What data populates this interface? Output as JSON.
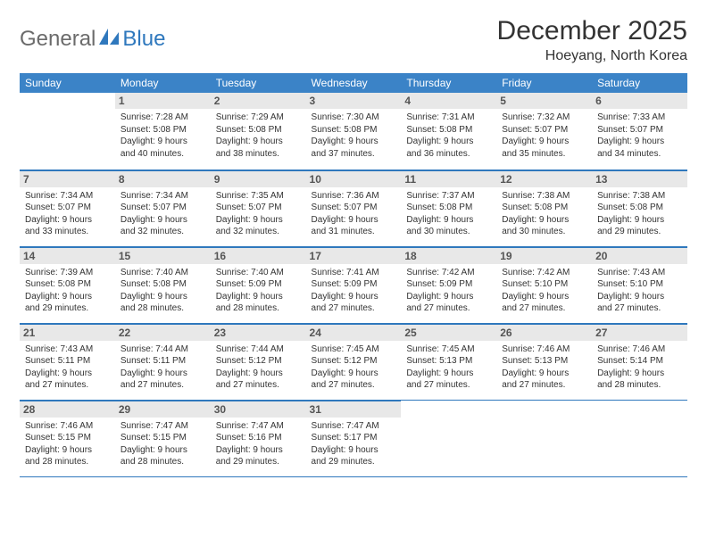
{
  "logo": {
    "part1": "General",
    "part2": "Blue"
  },
  "title": "December 2025",
  "location": "Hoeyang, North Korea",
  "colors": {
    "header_bg": "#3b83c7",
    "border": "#2f78bd",
    "daynum_bg": "#e8e8e8",
    "text": "#333333",
    "logo_gray": "#6b6b6b",
    "logo_blue": "#2f78bd"
  },
  "day_headers": [
    "Sunday",
    "Monday",
    "Tuesday",
    "Wednesday",
    "Thursday",
    "Friday",
    "Saturday"
  ],
  "weeks": [
    [
      null,
      {
        "n": "1",
        "sr": "Sunrise: 7:28 AM",
        "ss": "Sunset: 5:08 PM",
        "d1": "Daylight: 9 hours",
        "d2": "and 40 minutes."
      },
      {
        "n": "2",
        "sr": "Sunrise: 7:29 AM",
        "ss": "Sunset: 5:08 PM",
        "d1": "Daylight: 9 hours",
        "d2": "and 38 minutes."
      },
      {
        "n": "3",
        "sr": "Sunrise: 7:30 AM",
        "ss": "Sunset: 5:08 PM",
        "d1": "Daylight: 9 hours",
        "d2": "and 37 minutes."
      },
      {
        "n": "4",
        "sr": "Sunrise: 7:31 AM",
        "ss": "Sunset: 5:08 PM",
        "d1": "Daylight: 9 hours",
        "d2": "and 36 minutes."
      },
      {
        "n": "5",
        "sr": "Sunrise: 7:32 AM",
        "ss": "Sunset: 5:07 PM",
        "d1": "Daylight: 9 hours",
        "d2": "and 35 minutes."
      },
      {
        "n": "6",
        "sr": "Sunrise: 7:33 AM",
        "ss": "Sunset: 5:07 PM",
        "d1": "Daylight: 9 hours",
        "d2": "and 34 minutes."
      }
    ],
    [
      {
        "n": "7",
        "sr": "Sunrise: 7:34 AM",
        "ss": "Sunset: 5:07 PM",
        "d1": "Daylight: 9 hours",
        "d2": "and 33 minutes."
      },
      {
        "n": "8",
        "sr": "Sunrise: 7:34 AM",
        "ss": "Sunset: 5:07 PM",
        "d1": "Daylight: 9 hours",
        "d2": "and 32 minutes."
      },
      {
        "n": "9",
        "sr": "Sunrise: 7:35 AM",
        "ss": "Sunset: 5:07 PM",
        "d1": "Daylight: 9 hours",
        "d2": "and 32 minutes."
      },
      {
        "n": "10",
        "sr": "Sunrise: 7:36 AM",
        "ss": "Sunset: 5:07 PM",
        "d1": "Daylight: 9 hours",
        "d2": "and 31 minutes."
      },
      {
        "n": "11",
        "sr": "Sunrise: 7:37 AM",
        "ss": "Sunset: 5:08 PM",
        "d1": "Daylight: 9 hours",
        "d2": "and 30 minutes."
      },
      {
        "n": "12",
        "sr": "Sunrise: 7:38 AM",
        "ss": "Sunset: 5:08 PM",
        "d1": "Daylight: 9 hours",
        "d2": "and 30 minutes."
      },
      {
        "n": "13",
        "sr": "Sunrise: 7:38 AM",
        "ss": "Sunset: 5:08 PM",
        "d1": "Daylight: 9 hours",
        "d2": "and 29 minutes."
      }
    ],
    [
      {
        "n": "14",
        "sr": "Sunrise: 7:39 AM",
        "ss": "Sunset: 5:08 PM",
        "d1": "Daylight: 9 hours",
        "d2": "and 29 minutes."
      },
      {
        "n": "15",
        "sr": "Sunrise: 7:40 AM",
        "ss": "Sunset: 5:08 PM",
        "d1": "Daylight: 9 hours",
        "d2": "and 28 minutes."
      },
      {
        "n": "16",
        "sr": "Sunrise: 7:40 AM",
        "ss": "Sunset: 5:09 PM",
        "d1": "Daylight: 9 hours",
        "d2": "and 28 minutes."
      },
      {
        "n": "17",
        "sr": "Sunrise: 7:41 AM",
        "ss": "Sunset: 5:09 PM",
        "d1": "Daylight: 9 hours",
        "d2": "and 27 minutes."
      },
      {
        "n": "18",
        "sr": "Sunrise: 7:42 AM",
        "ss": "Sunset: 5:09 PM",
        "d1": "Daylight: 9 hours",
        "d2": "and 27 minutes."
      },
      {
        "n": "19",
        "sr": "Sunrise: 7:42 AM",
        "ss": "Sunset: 5:10 PM",
        "d1": "Daylight: 9 hours",
        "d2": "and 27 minutes."
      },
      {
        "n": "20",
        "sr": "Sunrise: 7:43 AM",
        "ss": "Sunset: 5:10 PM",
        "d1": "Daylight: 9 hours",
        "d2": "and 27 minutes."
      }
    ],
    [
      {
        "n": "21",
        "sr": "Sunrise: 7:43 AM",
        "ss": "Sunset: 5:11 PM",
        "d1": "Daylight: 9 hours",
        "d2": "and 27 minutes."
      },
      {
        "n": "22",
        "sr": "Sunrise: 7:44 AM",
        "ss": "Sunset: 5:11 PM",
        "d1": "Daylight: 9 hours",
        "d2": "and 27 minutes."
      },
      {
        "n": "23",
        "sr": "Sunrise: 7:44 AM",
        "ss": "Sunset: 5:12 PM",
        "d1": "Daylight: 9 hours",
        "d2": "and 27 minutes."
      },
      {
        "n": "24",
        "sr": "Sunrise: 7:45 AM",
        "ss": "Sunset: 5:12 PM",
        "d1": "Daylight: 9 hours",
        "d2": "and 27 minutes."
      },
      {
        "n": "25",
        "sr": "Sunrise: 7:45 AM",
        "ss": "Sunset: 5:13 PM",
        "d1": "Daylight: 9 hours",
        "d2": "and 27 minutes."
      },
      {
        "n": "26",
        "sr": "Sunrise: 7:46 AM",
        "ss": "Sunset: 5:13 PM",
        "d1": "Daylight: 9 hours",
        "d2": "and 27 minutes."
      },
      {
        "n": "27",
        "sr": "Sunrise: 7:46 AM",
        "ss": "Sunset: 5:14 PM",
        "d1": "Daylight: 9 hours",
        "d2": "and 28 minutes."
      }
    ],
    [
      {
        "n": "28",
        "sr": "Sunrise: 7:46 AM",
        "ss": "Sunset: 5:15 PM",
        "d1": "Daylight: 9 hours",
        "d2": "and 28 minutes."
      },
      {
        "n": "29",
        "sr": "Sunrise: 7:47 AM",
        "ss": "Sunset: 5:15 PM",
        "d1": "Daylight: 9 hours",
        "d2": "and 28 minutes."
      },
      {
        "n": "30",
        "sr": "Sunrise: 7:47 AM",
        "ss": "Sunset: 5:16 PM",
        "d1": "Daylight: 9 hours",
        "d2": "and 29 minutes."
      },
      {
        "n": "31",
        "sr": "Sunrise: 7:47 AM",
        "ss": "Sunset: 5:17 PM",
        "d1": "Daylight: 9 hours",
        "d2": "and 29 minutes."
      },
      null,
      null,
      null
    ]
  ]
}
